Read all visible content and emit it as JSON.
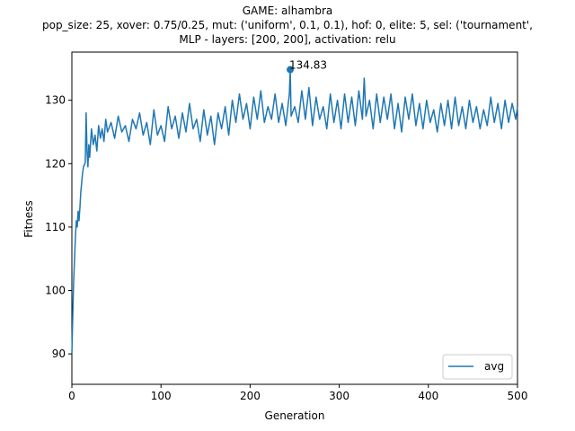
{
  "chart_data": {
    "type": "line",
    "title_lines": [
      "GAME: alhambra",
      "pop_size: 25, xover: 0.75/0.25, mut: ('uniform', 0.1, 0.1), hof: 0, elite: 5, sel: ('tournament',",
      "MLP - layers: [200, 200], activation: relu"
    ],
    "xlabel": "Generation",
    "ylabel": "Fitness",
    "xlim": [
      0,
      500
    ],
    "ylim": [
      85.2,
      137.6
    ],
    "xticks": [
      0,
      100,
      200,
      300,
      400,
      500
    ],
    "yticks": [
      90,
      100,
      110,
      120,
      130
    ],
    "grid": false,
    "legend_position": "lower-right",
    "series": [
      {
        "name": "avg",
        "color": "#1f77b4",
        "points": [
          [
            0,
            90.0
          ],
          [
            1,
            96.0
          ],
          [
            2,
            101.5
          ],
          [
            3,
            105.0
          ],
          [
            4,
            108.5
          ],
          [
            5,
            111.0
          ],
          [
            6,
            110.0
          ],
          [
            7,
            112.5
          ],
          [
            8,
            111.0
          ],
          [
            9,
            113.0
          ],
          [
            10,
            115.5
          ],
          [
            11,
            117.0
          ],
          [
            12,
            118.5
          ],
          [
            13,
            119.5
          ],
          [
            14,
            119.8
          ],
          [
            15,
            120.2
          ],
          [
            16,
            128.0
          ],
          [
            17,
            122.0
          ],
          [
            18,
            119.5
          ],
          [
            19,
            123.0
          ],
          [
            20,
            121.0
          ],
          [
            22,
            125.5
          ],
          [
            24,
            123.0
          ],
          [
            26,
            124.5
          ],
          [
            28,
            122.0
          ],
          [
            30,
            126.0
          ],
          [
            32,
            124.0
          ],
          [
            34,
            125.5
          ],
          [
            36,
            123.5
          ],
          [
            38,
            127.0
          ],
          [
            40,
            125.0
          ],
          [
            44,
            126.5
          ],
          [
            48,
            124.0
          ],
          [
            52,
            127.5
          ],
          [
            56,
            125.0
          ],
          [
            60,
            126.0
          ],
          [
            64,
            123.5
          ],
          [
            68,
            127.0
          ],
          [
            72,
            125.5
          ],
          [
            76,
            128.0
          ],
          [
            80,
            124.5
          ],
          [
            84,
            126.5
          ],
          [
            88,
            123.0
          ],
          [
            92,
            128.5
          ],
          [
            96,
            124.5
          ],
          [
            100,
            126.0
          ],
          [
            104,
            123.5
          ],
          [
            108,
            129.0
          ],
          [
            112,
            125.5
          ],
          [
            116,
            127.5
          ],
          [
            120,
            124.0
          ],
          [
            124,
            128.0
          ],
          [
            128,
            125.0
          ],
          [
            132,
            129.5
          ],
          [
            136,
            125.5
          ],
          [
            140,
            127.0
          ],
          [
            144,
            123.5
          ],
          [
            148,
            128.5
          ],
          [
            152,
            124.5
          ],
          [
            156,
            127.5
          ],
          [
            160,
            123.0
          ],
          [
            164,
            128.0
          ],
          [
            168,
            125.5
          ],
          [
            172,
            129.0
          ],
          [
            176,
            124.5
          ],
          [
            180,
            130.0
          ],
          [
            184,
            126.5
          ],
          [
            188,
            131.0
          ],
          [
            192,
            127.0
          ],
          [
            196,
            129.5
          ],
          [
            200,
            125.5
          ],
          [
            204,
            130.5
          ],
          [
            208,
            127.0
          ],
          [
            212,
            131.5
          ],
          [
            216,
            126.5
          ],
          [
            220,
            129.0
          ],
          [
            224,
            127.0
          ],
          [
            228,
            131.0
          ],
          [
            232,
            126.5
          ],
          [
            236,
            129.5
          ],
          [
            240,
            126.0
          ],
          [
            244,
            131.0
          ],
          [
            245,
            134.83
          ],
          [
            246,
            127.5
          ],
          [
            250,
            129.0
          ],
          [
            254,
            126.5
          ],
          [
            258,
            131.5
          ],
          [
            262,
            127.0
          ],
          [
            266,
            132.0
          ],
          [
            270,
            126.0
          ],
          [
            274,
            130.5
          ],
          [
            278,
            127.0
          ],
          [
            282,
            129.0
          ],
          [
            286,
            125.5
          ],
          [
            290,
            131.0
          ],
          [
            294,
            126.5
          ],
          [
            298,
            130.0
          ],
          [
            302,
            125.5
          ],
          [
            306,
            131.0
          ],
          [
            310,
            126.5
          ],
          [
            314,
            130.5
          ],
          [
            318,
            126.0
          ],
          [
            322,
            131.5
          ],
          [
            326,
            127.0
          ],
          [
            328,
            133.5
          ],
          [
            330,
            127.5
          ],
          [
            334,
            130.0
          ],
          [
            338,
            125.5
          ],
          [
            342,
            131.0
          ],
          [
            346,
            126.5
          ],
          [
            350,
            130.5
          ],
          [
            354,
            127.0
          ],
          [
            358,
            131.0
          ],
          [
            362,
            125.5
          ],
          [
            366,
            129.5
          ],
          [
            370,
            125.0
          ],
          [
            374,
            130.5
          ],
          [
            378,
            127.0
          ],
          [
            382,
            131.0
          ],
          [
            386,
            126.0
          ],
          [
            390,
            129.5
          ],
          [
            394,
            125.5
          ],
          [
            398,
            130.0
          ],
          [
            402,
            126.5
          ],
          [
            406,
            128.5
          ],
          [
            410,
            125.0
          ],
          [
            414,
            129.5
          ],
          [
            418,
            126.0
          ],
          [
            422,
            130.0
          ],
          [
            426,
            125.5
          ],
          [
            430,
            130.5
          ],
          [
            434,
            126.0
          ],
          [
            438,
            129.0
          ],
          [
            442,
            125.5
          ],
          [
            446,
            130.0
          ],
          [
            450,
            126.5
          ],
          [
            454,
            129.0
          ],
          [
            458,
            125.5
          ],
          [
            462,
            128.5
          ],
          [
            466,
            126.0
          ],
          [
            470,
            130.5
          ],
          [
            474,
            126.5
          ],
          [
            478,
            129.5
          ],
          [
            482,
            125.5
          ],
          [
            486,
            130.0
          ],
          [
            490,
            126.5
          ],
          [
            494,
            129.5
          ],
          [
            498,
            127.0
          ],
          [
            500,
            129.0
          ]
        ]
      }
    ],
    "annotations": [
      {
        "text": "134.83",
        "x": 245,
        "y": 134.83,
        "marker": true
      }
    ]
  }
}
